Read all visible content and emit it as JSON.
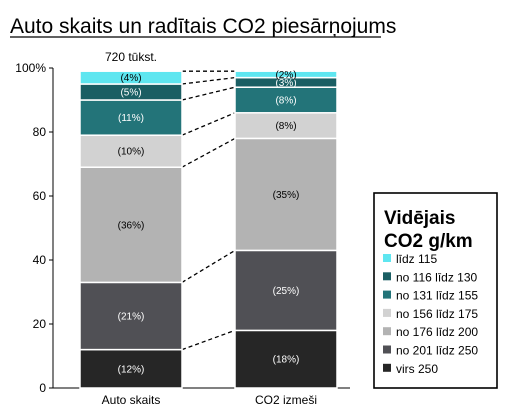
{
  "chart_data": {
    "type": "bar",
    "stacked": true,
    "title": "Auto skaits un radītais CO2 piesārņojums",
    "annotation": "720 tūkst.",
    "categories": [
      "Auto skaits",
      "CO2 izmeši"
    ],
    "ylim": [
      0,
      100
    ],
    "yticks": [
      "0",
      "20",
      "40",
      "60",
      "80",
      "100%"
    ],
    "legend": {
      "title_line1": "Vidējais",
      "title_line2": "CO2 g/km",
      "placement": "right"
    },
    "series": [
      {
        "name": "virs 250",
        "color": "#262626",
        "label_color": "#ffffff",
        "values": [
          12,
          18
        ],
        "labels": [
          "(12%)",
          "(18%)"
        ]
      },
      {
        "name": "no 201 līdz 250",
        "color": "#505055",
        "label_color": "#ffffff",
        "values": [
          21,
          25
        ],
        "labels": [
          "(21%)",
          "(25%)"
        ]
      },
      {
        "name": "no 176 līdz 200",
        "color": "#b3b3b3",
        "label_color": "#000000",
        "values": [
          36,
          35
        ],
        "labels": [
          "(36%)",
          "(35%)"
        ]
      },
      {
        "name": "no 156 līdz 175",
        "color": "#d2d2d2",
        "label_color": "#000000",
        "values": [
          10,
          8
        ],
        "labels": [
          "(10%)",
          "(8%)"
        ]
      },
      {
        "name": "no 131 līdz 155",
        "color": "#237479",
        "label_color": "#ffffff",
        "values": [
          11,
          8
        ],
        "labels": [
          "(11%)",
          "(8%)"
        ]
      },
      {
        "name": "no 116 līdz 130",
        "color": "#1a5e63",
        "label_color": "#ffffff",
        "values": [
          5,
          3
        ],
        "labels": [
          "(5%)",
          "(3%)"
        ]
      },
      {
        "name": "līdz 115",
        "color": "#5ee6f0",
        "label_color": "#000000",
        "values": [
          4,
          2
        ],
        "labels": [
          "(4%)",
          "(2%)"
        ]
      }
    ]
  }
}
